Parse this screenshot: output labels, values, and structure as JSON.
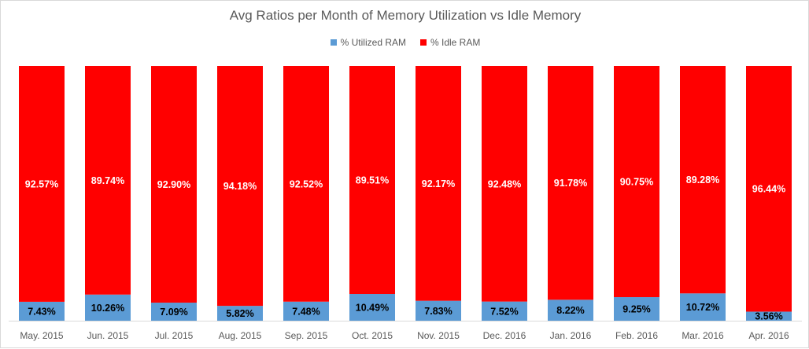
{
  "chart_data": {
    "type": "bar",
    "stacked": true,
    "percent_stacked": true,
    "title": "Avg Ratios per Month of Memory Utilization vs Idle Memory",
    "xlabel": "",
    "ylabel": "",
    "ylim": [
      0,
      100
    ],
    "legend_position": "top-center",
    "grid": false,
    "categories": [
      "May. 2015",
      "Jun. 2015",
      "Jul. 2015",
      "Aug. 2015",
      "Sep. 2015",
      "Oct. 2015",
      "Nov. 2015",
      "Dec. 2016",
      "Jan. 2016",
      "Feb. 2016",
      "Mar. 2016",
      "Apr. 2016"
    ],
    "series": [
      {
        "name": "% Utilized RAM",
        "color": "#5b9bd5",
        "label_color": "#000000",
        "values": [
          7.43,
          10.26,
          7.09,
          5.82,
          7.48,
          10.49,
          7.83,
          7.52,
          8.22,
          9.25,
          10.72,
          3.56
        ],
        "labels": [
          "7.43%",
          "10.26%",
          "7.09%",
          "5.82%",
          "7.48%",
          "10.49%",
          "7.83%",
          "7.52%",
          "8.22%",
          "9.25%",
          "10.72%",
          "3.56%"
        ]
      },
      {
        "name": "% Idle RAM",
        "color": "#ff0000",
        "label_color": "#ffffff",
        "values": [
          92.57,
          89.74,
          92.9,
          94.18,
          92.52,
          89.51,
          92.17,
          92.48,
          91.78,
          90.75,
          89.28,
          96.44
        ],
        "labels": [
          "92.57%",
          "89.74%",
          "92.90%",
          "94.18%",
          "92.52%",
          "89.51%",
          "92.17%",
          "92.48%",
          "91.78%",
          "90.75%",
          "89.28%",
          "96.44%"
        ]
      }
    ]
  }
}
